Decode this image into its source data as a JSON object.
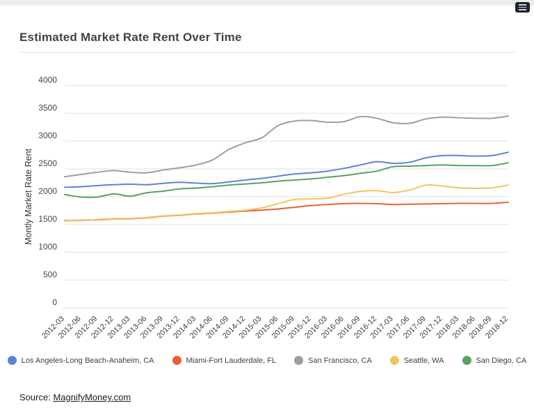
{
  "page": {
    "title": "Estimated Market Rate Rent Over Time",
    "source_label": "Source:",
    "source_link": "MagnifyMoney.com"
  },
  "icons": {
    "corner_menu": "menu-icon"
  },
  "chart_data": {
    "type": "line",
    "title": "Estimated Market Rate Rent Over Time",
    "xlabel": "",
    "ylabel": "Montly Market Rate Rent",
    "ylim": [
      0,
      4000
    ],
    "ytick_interval": 500,
    "grid": true,
    "smooth": true,
    "legend_position": "bottom",
    "categories": [
      "2012-03",
      "2012-06",
      "2012-09",
      "2012-12",
      "2013-03",
      "2013-06",
      "2013-09",
      "2013-12",
      "2014-03",
      "2014-06",
      "2014-09",
      "2014-12",
      "2015-03",
      "2015-06",
      "2015-09",
      "2015-12",
      "2016-03",
      "2016-06",
      "2016-09",
      "2016-12",
      "2017-03",
      "2017-06",
      "2017-09",
      "2017-12",
      "2018-03",
      "2018-06",
      "2018-09",
      "2018-12"
    ],
    "series": [
      {
        "name": "Los Angeles-Long Beach-Anaheim, CA",
        "color": "#5e83d4",
        "values": [
          2170,
          2180,
          2200,
          2215,
          2225,
          2215,
          2240,
          2260,
          2245,
          2235,
          2265,
          2300,
          2330,
          2370,
          2410,
          2430,
          2460,
          2510,
          2570,
          2630,
          2600,
          2620,
          2700,
          2740,
          2740,
          2730,
          2740,
          2800
        ]
      },
      {
        "name": "Miami-Fort Lauderdale, FL",
        "color": "#ed5e33",
        "values": [
          1570,
          1575,
          1585,
          1600,
          1605,
          1620,
          1650,
          1665,
          1690,
          1705,
          1725,
          1740,
          1760,
          1780,
          1810,
          1840,
          1860,
          1875,
          1880,
          1875,
          1860,
          1865,
          1870,
          1875,
          1880,
          1880,
          1880,
          1900
        ]
      },
      {
        "name": "San Francisco, CA",
        "color": "#9e9e9e",
        "values": [
          2360,
          2400,
          2440,
          2470,
          2440,
          2430,
          2480,
          2520,
          2570,
          2660,
          2850,
          2970,
          3060,
          3280,
          3360,
          3370,
          3340,
          3350,
          3440,
          3410,
          3330,
          3320,
          3400,
          3430,
          3420,
          3410,
          3410,
          3450
        ]
      },
      {
        "name": "Seattle, WA",
        "color": "#f1c45f",
        "values": [
          1580,
          1570,
          1590,
          1605,
          1610,
          1625,
          1655,
          1670,
          1695,
          1710,
          1735,
          1755,
          1800,
          1875,
          1950,
          1960,
          1975,
          2045,
          2095,
          2110,
          2075,
          2120,
          2210,
          2190,
          2160,
          2150,
          2160,
          2210
        ]
      },
      {
        "name": "San Diego, CA",
        "color": "#55a25f",
        "values": [
          2040,
          1995,
          1995,
          2050,
          2010,
          2070,
          2100,
          2140,
          2155,
          2180,
          2210,
          2230,
          2250,
          2280,
          2300,
          2320,
          2350,
          2380,
          2420,
          2460,
          2540,
          2550,
          2560,
          2570,
          2560,
          2560,
          2560,
          2610
        ]
      }
    ]
  }
}
